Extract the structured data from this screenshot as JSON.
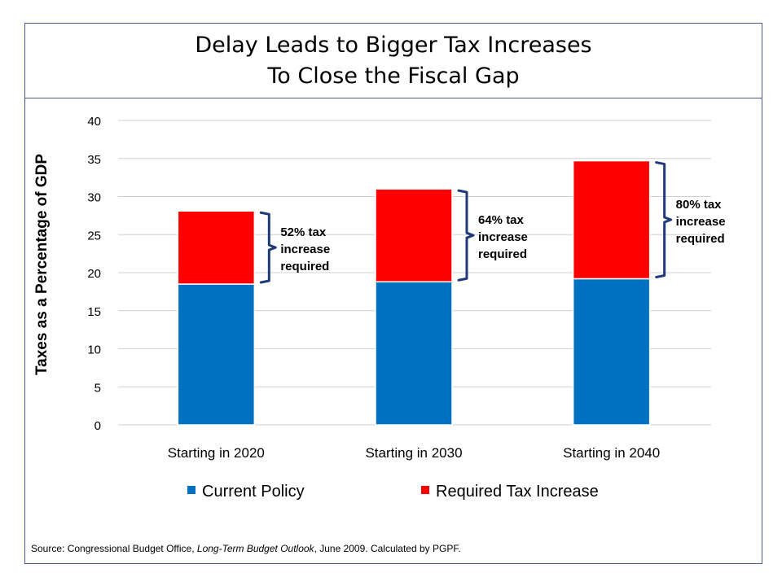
{
  "header": {
    "title_line1": "Delay Leads to Bigger Tax Increases",
    "title_line2": "To Close the Fiscal Gap"
  },
  "source": {
    "prefix": "Source:  Congressional Budget Office, ",
    "publication": "Long-Term Budget Outlook",
    "suffix": ", June 2009.  Calculated by PGPF."
  },
  "chart_data": {
    "type": "bar",
    "stacked": true,
    "title": "",
    "xlabel": "",
    "ylabel": "Taxes as a Percentage of GDP",
    "ylim": [
      0,
      40
    ],
    "yticks": [
      0,
      5,
      10,
      15,
      20,
      25,
      30,
      35,
      40
    ],
    "grid": true,
    "legend_position": "bottom",
    "categories": [
      "Starting in 2020",
      "Starting in 2030",
      "Starting in 2040"
    ],
    "series": [
      {
        "name": "Current Policy",
        "color": "#0070c0",
        "values": [
          18.5,
          18.8,
          19.2
        ]
      },
      {
        "name": "Required Tax Increase",
        "color": "#ff0000",
        "values": [
          9.6,
          12.2,
          15.5
        ]
      }
    ],
    "annotations": [
      {
        "category": "Starting in 2020",
        "lines": [
          "52% tax",
          "increase",
          "required"
        ]
      },
      {
        "category": "Starting in 2030",
        "lines": [
          "64% tax",
          "increase",
          "required"
        ]
      },
      {
        "category": "Starting in 2040",
        "lines": [
          "80% tax",
          "increase",
          "required"
        ]
      }
    ],
    "bracket_color": "#1f3a7a"
  }
}
